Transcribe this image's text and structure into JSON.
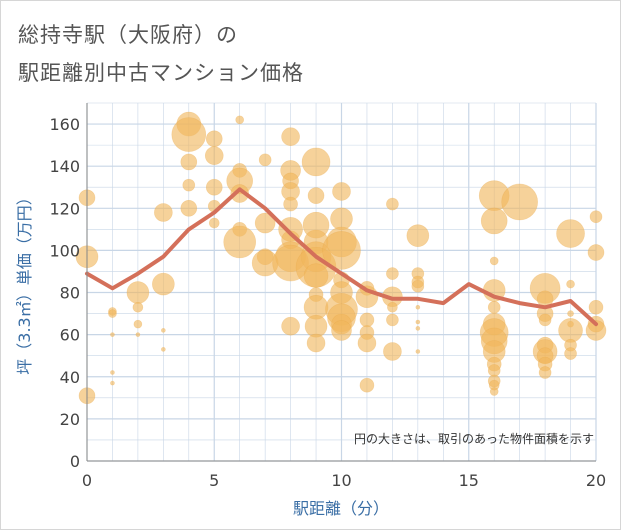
{
  "title_line1": "総持寺駅（大阪府）の",
  "title_line2": "駅距離別中古マンション価格",
  "chart_data": {
    "type": "scatter",
    "xlabel": "駅距離（分）",
    "ylabel": "坪（3.3㎡）単価（万円）",
    "xlim": [
      0,
      20
    ],
    "ylim": [
      0,
      170
    ],
    "x_ticks": [
      "0",
      "5",
      "10",
      "15",
      "20"
    ],
    "y_ticks": [
      "0",
      "20",
      "40",
      "60",
      "80",
      "100",
      "120",
      "140",
      "160"
    ],
    "grid": true,
    "annotation": "円の大きさは、取引のあった物件面積を示す",
    "colors": {
      "bubble": "#f0b65c",
      "line": "#d4705a",
      "grid": "#c8d6e6",
      "axis_text": "#3a6ea5"
    },
    "series": [
      {
        "kind": "average_line",
        "x": [
          0,
          1,
          2,
          3,
          4,
          5,
          6,
          7,
          8,
          9,
          10,
          11,
          12,
          13,
          14,
          15,
          16,
          17,
          18,
          19,
          20
        ],
        "y": [
          89,
          82,
          89,
          97,
          110,
          118,
          129,
          120,
          108,
          97,
          89,
          81,
          77,
          77,
          75,
          84,
          78,
          75,
          73,
          76,
          65
        ]
      },
      {
        "kind": "bubbles",
        "points": [
          [
            0,
            125,
            8
          ],
          [
            0,
            97,
            11
          ],
          [
            0,
            31,
            8
          ],
          [
            1,
            71,
            4
          ],
          [
            1,
            70,
            4
          ],
          [
            1,
            60,
            2
          ],
          [
            1,
            42,
            2
          ],
          [
            1,
            37,
            2
          ],
          [
            2,
            80,
            11
          ],
          [
            2,
            73,
            5
          ],
          [
            2,
            65,
            4
          ],
          [
            2,
            60,
            2
          ],
          [
            3,
            118,
            9
          ],
          [
            3,
            84,
            11
          ],
          [
            3,
            62,
            2
          ],
          [
            3,
            53,
            2
          ],
          [
            4,
            160,
            12
          ],
          [
            4,
            155,
            17
          ],
          [
            4,
            142,
            8
          ],
          [
            4,
            131,
            6
          ],
          [
            4,
            120,
            8
          ],
          [
            5,
            153,
            8
          ],
          [
            5,
            145,
            9
          ],
          [
            5,
            130,
            8
          ],
          [
            5,
            121,
            6
          ],
          [
            5,
            113,
            5
          ],
          [
            6,
            162,
            4
          ],
          [
            6,
            138,
            7
          ],
          [
            6,
            133,
            13
          ],
          [
            6,
            127,
            9
          ],
          [
            6,
            110,
            7
          ],
          [
            6,
            104,
            16
          ],
          [
            7,
            143,
            6
          ],
          [
            7,
            113,
            10
          ],
          [
            7,
            97,
            8
          ],
          [
            7,
            94,
            13
          ],
          [
            8,
            154,
            9
          ],
          [
            8,
            138,
            10
          ],
          [
            8,
            133,
            8
          ],
          [
            8,
            128,
            9
          ],
          [
            8,
            122,
            7
          ],
          [
            8,
            110,
            12
          ],
          [
            8,
            105,
            9
          ],
          [
            8,
            97,
            15
          ],
          [
            8,
            94,
            18
          ],
          [
            8,
            64,
            9
          ],
          [
            9,
            142,
            14
          ],
          [
            9,
            126,
            8
          ],
          [
            9,
            112,
            13
          ],
          [
            9,
            104,
            12
          ],
          [
            9,
            97,
            15
          ],
          [
            9,
            92,
            20
          ],
          [
            9,
            88,
            12
          ],
          [
            9,
            79,
            7
          ],
          [
            9,
            73,
            12
          ],
          [
            9,
            64,
            11
          ],
          [
            9,
            56,
            9
          ],
          [
            10,
            128,
            9
          ],
          [
            10,
            115,
            11
          ],
          [
            10,
            104,
            15
          ],
          [
            10,
            100,
            19
          ],
          [
            10,
            86,
            8
          ],
          [
            10,
            80,
            11
          ],
          [
            10,
            72,
            16
          ],
          [
            10,
            68,
            14
          ],
          [
            10,
            65,
            10
          ],
          [
            10,
            62,
            10
          ],
          [
            11,
            82,
            7
          ],
          [
            11,
            78,
            11
          ],
          [
            11,
            67,
            7
          ],
          [
            11,
            61,
            7
          ],
          [
            11,
            56,
            9
          ],
          [
            11,
            36,
            7
          ],
          [
            12,
            122,
            6
          ],
          [
            12,
            89,
            6
          ],
          [
            12,
            78,
            10
          ],
          [
            12,
            73,
            5
          ],
          [
            12,
            67,
            6
          ],
          [
            12,
            52,
            9
          ],
          [
            13,
            107,
            11
          ],
          [
            13,
            89,
            6
          ],
          [
            13,
            85,
            6
          ],
          [
            13,
            83,
            6
          ],
          [
            13,
            73,
            2
          ],
          [
            13,
            66,
            2
          ],
          [
            13,
            63,
            2
          ],
          [
            13,
            52,
            2
          ],
          [
            16,
            126,
            15
          ],
          [
            16,
            114,
            13
          ],
          [
            16,
            95,
            4
          ],
          [
            16,
            81,
            11
          ],
          [
            16,
            73,
            6
          ],
          [
            16,
            65,
            11
          ],
          [
            16,
            61,
            14
          ],
          [
            16,
            57,
            13
          ],
          [
            16,
            52,
            11
          ],
          [
            16,
            46,
            7
          ],
          [
            16,
            43,
            6
          ],
          [
            16,
            38,
            6
          ],
          [
            16,
            36,
            5
          ],
          [
            16,
            33,
            4
          ],
          [
            17,
            123,
            18
          ],
          [
            18,
            82,
            15
          ],
          [
            18,
            77,
            8
          ],
          [
            18,
            70,
            8
          ],
          [
            18,
            67,
            6
          ],
          [
            18,
            55,
            8
          ],
          [
            18,
            52,
            12
          ],
          [
            18,
            50,
            8
          ],
          [
            18,
            46,
            7
          ],
          [
            18,
            42,
            6
          ],
          [
            19,
            108,
            14
          ],
          [
            19,
            84,
            4
          ],
          [
            19,
            70,
            3
          ],
          [
            19,
            65,
            3
          ],
          [
            19,
            62,
            12
          ],
          [
            19,
            55,
            6
          ],
          [
            19,
            51,
            6
          ],
          [
            20,
            116,
            6
          ],
          [
            20,
            99,
            8
          ],
          [
            20,
            73,
            7
          ],
          [
            20,
            65,
            8
          ],
          [
            20,
            62,
            10
          ]
        ]
      }
    ]
  }
}
